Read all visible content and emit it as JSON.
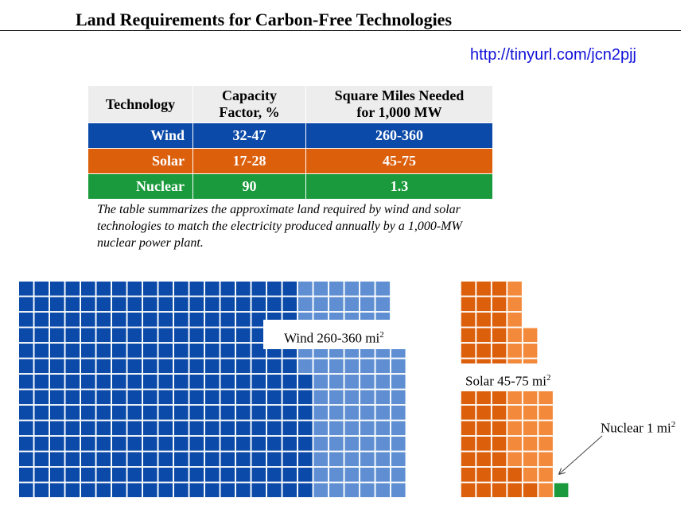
{
  "title": "Land Requirements for Carbon-Free Technologies",
  "url": "http://tinyurl.com/jcn2pjj",
  "table": {
    "headers": [
      [
        "Technology"
      ],
      [
        "Capacity",
        "Factor, %"
      ],
      [
        "Square Miles Needed",
        "for 1,000 MW"
      ]
    ],
    "rows": [
      {
        "technology": "Wind",
        "capacity_factor": "32-47",
        "square_miles": "260-360",
        "color": "#0b4aa8"
      },
      {
        "technology": "Solar",
        "capacity_factor": "17-28",
        "square_miles": "45-75",
        "color": "#dc5f0c"
      },
      {
        "technology": "Nuclear",
        "capacity_factor": "90",
        "square_miles": "1.3",
        "color": "#1a9a3c"
      }
    ]
  },
  "caption": "The table summarizes the approximate land required by wind and solar technologies to match the electricity produced annually by a 1,000-MW nuclear power plant.",
  "chart_data": {
    "type": "waffle",
    "unit": "square mile",
    "series": [
      {
        "name": "Wind",
        "min": 260,
        "max": 360,
        "label": "Wind 260-360 mi",
        "label_sup": "2",
        "color_min": "#0b4aa8",
        "color_extra": "#5f8fd2"
      },
      {
        "name": "Solar",
        "min": 45,
        "max": 75,
        "label": "Solar 45-75 mi",
        "label_sup": "2",
        "color_min": "#dc5f0c",
        "color_extra": "#f3893a"
      },
      {
        "name": "Nuclear",
        "value": 1,
        "label": "Nuclear 1 mi",
        "label_sup": "2",
        "color": "#1a9a3c"
      }
    ]
  }
}
